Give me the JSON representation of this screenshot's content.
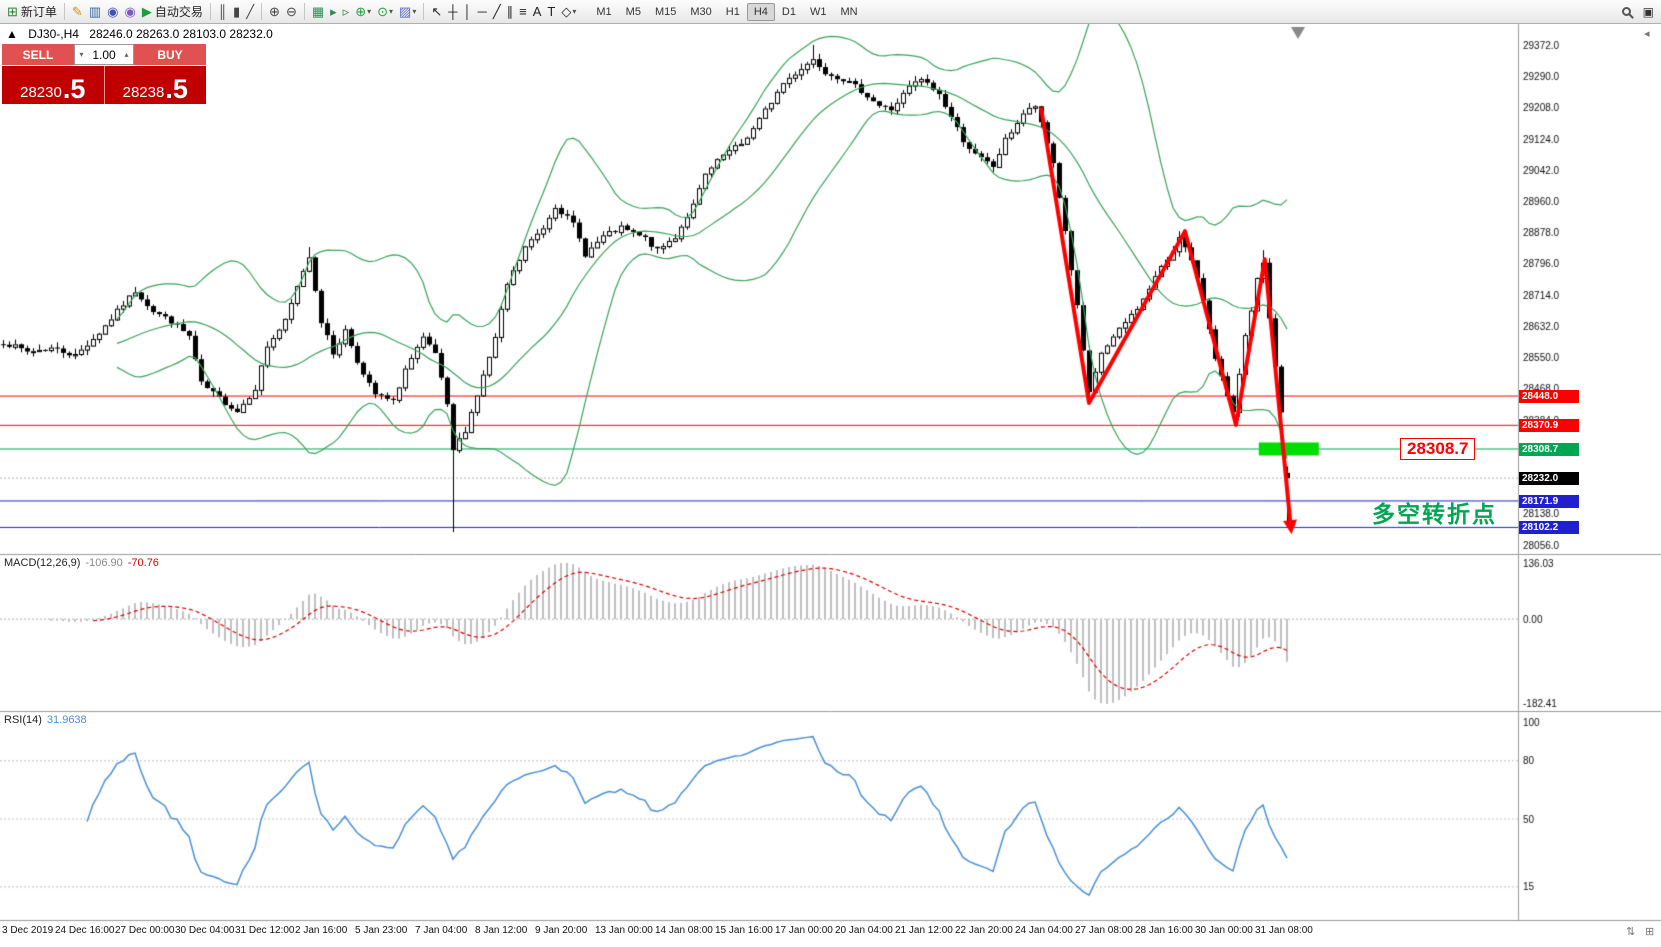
{
  "colors": {
    "button_red": "#e05252",
    "sell_red": "#c00000",
    "hline_red": "#ff0000",
    "hline_green": "#00a651",
    "hline_blue": "#2020cc",
    "band_green": "#3aa35c",
    "arrow_red": "#ff0000",
    "highlight_green": "#00dd00",
    "macd_histogram": "#c0c0c0",
    "macd_signal": "#e00000",
    "rsi_blue": "#4a90d9",
    "tag_black": "#000000"
  },
  "toolbar": {
    "groups": [
      {
        "items": [
          {
            "name": "new-order-button",
            "glyph": "⊞",
            "color": "#2e7d32",
            "label": "新订单"
          }
        ]
      },
      {
        "items": [
          {
            "name": "styler-icon",
            "glyph": "✎",
            "color": "#c8921a"
          },
          {
            "name": "new-chart-icon",
            "glyph": "▥",
            "color": "#33679e"
          },
          {
            "name": "profiles-icon",
            "glyph": "◉",
            "color": "#3f51b5"
          },
          {
            "name": "alerts-icon",
            "glyph": "◉",
            "color": "#7e57c2"
          },
          {
            "name": "auto-trading-button",
            "glyph": "▶",
            "color": "#1f9d3a",
            "label": "自动交易"
          }
        ]
      },
      {
        "items": [
          {
            "name": "bar-chart-type-icon",
            "glyph": "║",
            "color": "#444444"
          },
          {
            "name": "candlestick-type-icon",
            "glyph": "▮",
            "color": "#444444"
          },
          {
            "name": "line-chart-type-icon",
            "glyph": "╱",
            "color": "#444444"
          }
        ]
      },
      {
        "items": [
          {
            "name": "zoom-in-icon",
            "glyph": "⊕",
            "color": "#444444"
          },
          {
            "name": "zoom-out-icon",
            "glyph": "⊖",
            "color": "#444444"
          }
        ]
      },
      {
        "items": [
          {
            "name": "tile-windows-icon",
            "glyph": "▦",
            "color": "#2e8b57"
          },
          {
            "name": "auto-scroll-icon",
            "glyph": "▸",
            "color": "#2e8b57"
          },
          {
            "name": "chart-shift-icon",
            "glyph": "▹",
            "color": "#2e8b57"
          },
          {
            "name": "indicators-icon",
            "glyph": "⊕",
            "color": "#1f9d3a",
            "dropdown": true
          },
          {
            "name": "periods-icon",
            "glyph": "⊙",
            "color": "#1f9d3a",
            "dropdown": true
          },
          {
            "name": "templates-icon",
            "glyph": "▨",
            "color": "#5c6bc0",
            "dropdown": true
          }
        ]
      },
      {
        "items": [
          {
            "name": "cursor-icon",
            "glyph": "↖",
            "color": "#222222"
          },
          {
            "name": "crosshair-icon",
            "glyph": "┼",
            "color": "#222222"
          },
          {
            "name": "vertical-line-icon",
            "glyph": "│",
            "color": "#222222"
          },
          {
            "name": "horizontal-line-icon",
            "glyph": "─",
            "color": "#222222"
          },
          {
            "name": "trendline-icon",
            "glyph": "╱",
            "color": "#222222"
          },
          {
            "name": "channel-icon",
            "glyph": "∥",
            "color": "#222222"
          },
          {
            "name": "fibonacci-icon",
            "glyph": "≡",
            "color": "#222222"
          },
          {
            "name": "text-icon",
            "glyph": "A",
            "color": "#222222"
          },
          {
            "name": "label-icon",
            "glyph": "T",
            "color": "#222222"
          },
          {
            "name": "shapes-icon",
            "glyph": "◇",
            "color": "#222222",
            "dropdown": true
          }
        ]
      }
    ],
    "timeframes": [
      "M1",
      "M5",
      "M15",
      "M30",
      "H1",
      "H4",
      "D1",
      "W1",
      "MN"
    ],
    "active_timeframe": "H4"
  },
  "trade_widget": {
    "sell_label": "SELL",
    "buy_label": "BUY",
    "volume": "1.00",
    "sell_price": {
      "main": "28230",
      "big": ".5"
    },
    "buy_price": {
      "main": "28238",
      "big": ".5"
    }
  },
  "chart": {
    "expander": "▲",
    "symbol_label": "DJ30-,H4",
    "ohlc": "28246.0 28263.0 28103.0 28232.0",
    "price_axis": [
      29372.0,
      29290.0,
      29208.0,
      29124.0,
      29042.0,
      28960.0,
      28878.0,
      28796.0,
      28714.0,
      28632.0,
      28550.0,
      28468.0,
      28384.0,
      28138.0,
      28056.0
    ],
    "hlines": [
      {
        "price": 28448.0,
        "label": "28448.0",
        "color": "#ff0000",
        "tag_bg": "#ff0000"
      },
      {
        "price": 28370.9,
        "label": "28370.9",
        "color": "#ff0000",
        "tag_bg": "#ff0000"
      },
      {
        "price": 28308.7,
        "label": "28308.7",
        "color": "#00a651",
        "tag_bg": "#00a651"
      },
      {
        "price": 28171.9,
        "label": "28171.9",
        "color": "#2020cc",
        "tag_bg": "#2020cc"
      },
      {
        "price": 28102.2,
        "label": "28102.2",
        "color": "#2020cc",
        "tag_bg": "#2020cc"
      }
    ],
    "current_price_tag": {
      "price": 28232.0,
      "label": "28232.0",
      "tag_bg": "#000000"
    },
    "annotation_price_label": "28308.7",
    "annotation_text": "多空转折点",
    "highlight_bar": {
      "price": 28308.7,
      "from_idx": 209.3,
      "to_idx": 219.3
    }
  },
  "macd": {
    "name_part": "MACD(12,26,9)",
    "main_value": "-106.90",
    "signal_value": "-70.76",
    "axis": {
      "top": "136.03",
      "zero": "0.00",
      "bottom": "-182.41"
    },
    "params": {
      "fast": 12,
      "slow": 26,
      "signal": 9
    }
  },
  "rsi": {
    "name_part": "RSI(14)",
    "value": "31.9638",
    "period": 14,
    "axis": [
      {
        "label": "100",
        "value": 100,
        "line": false
      },
      {
        "label": "80",
        "value": 80,
        "line": true
      },
      {
        "label": "50",
        "value": 50,
        "line": true
      },
      {
        "label": "15",
        "value": 15,
        "line": true
      }
    ]
  },
  "time_axis": [
    "3 Dec 2019",
    "24 Dec 16:00",
    "27 Dec 00:00",
    "30 Dec 04:00",
    "31 Dec 12:00",
    "2 Jan 16:00",
    "5 Jan 23:00",
    "7 Jan 04:00",
    "8 Jan 12:00",
    "9 Jan 20:00",
    "13 Jan 00:00",
    "14 Jan 08:00",
    "15 Jan 16:00",
    "17 Jan 00:00",
    "20 Jan 04:00",
    "21 Jan 12:00",
    "22 Jan 20:00",
    "24 Jan 04:00",
    "27 Jan 08:00",
    "28 Jan 16:00",
    "30 Jan 00:00",
    "31 Jan 08:00"
  ],
  "chart_data": {
    "type": "candlestick",
    "symbol": "DJ30-",
    "timeframe": "H4",
    "visible_price_range": {
      "top": 29372.0,
      "bottom": 28056.0
    },
    "last_ohlc": {
      "open": 28246.0,
      "high": 28263.0,
      "low": 28103.0,
      "close": 28232.0
    },
    "candle_count": 215,
    "seed": 7,
    "price_anchors": [
      [
        0,
        28590
      ],
      [
        4,
        28565
      ],
      [
        8,
        28575
      ],
      [
        12,
        28555
      ],
      [
        16,
        28615
      ],
      [
        20,
        28690
      ],
      [
        22,
        28725
      ],
      [
        25,
        28672
      ],
      [
        28,
        28645
      ],
      [
        31,
        28605
      ],
      [
        33,
        28480
      ],
      [
        36,
        28442
      ],
      [
        39,
        28408
      ],
      [
        42,
        28470
      ],
      [
        44,
        28580
      ],
      [
        47,
        28645
      ],
      [
        50,
        28780
      ],
      [
        51,
        28815
      ],
      [
        53,
        28645
      ],
      [
        55,
        28560
      ],
      [
        57,
        28622
      ],
      [
        60,
        28502
      ],
      [
        62,
        28452
      ],
      [
        65,
        28432
      ],
      [
        67,
        28520
      ],
      [
        70,
        28598
      ],
      [
        72,
        28560
      ],
      [
        74,
        28420
      ],
      [
        75,
        28305
      ],
      [
        77,
        28360
      ],
      [
        79,
        28452
      ],
      [
        82,
        28600
      ],
      [
        84,
        28742
      ],
      [
        87,
        28840
      ],
      [
        90,
        28892
      ],
      [
        92,
        28950
      ],
      [
        95,
        28900
      ],
      [
        97,
        28822
      ],
      [
        100,
        28868
      ],
      [
        103,
        28890
      ],
      [
        107,
        28862
      ],
      [
        109,
        28830
      ],
      [
        112,
        28868
      ],
      [
        115,
        28950
      ],
      [
        117,
        29030
      ],
      [
        120,
        29082
      ],
      [
        123,
        29112
      ],
      [
        125,
        29152
      ],
      [
        127,
        29200
      ],
      [
        130,
        29272
      ],
      [
        133,
        29312
      ],
      [
        135,
        29335
      ],
      [
        137,
        29302
      ],
      [
        140,
        29282
      ],
      [
        143,
        29252
      ],
      [
        146,
        29212
      ],
      [
        148,
        29202
      ],
      [
        151,
        29262
      ],
      [
        153,
        29282
      ],
      [
        156,
        29242
      ],
      [
        158,
        29182
      ],
      [
        160,
        29122
      ],
      [
        162,
        29082
      ],
      [
        165,
        29052
      ],
      [
        167,
        29122
      ],
      [
        170,
        29192
      ],
      [
        172,
        29212
      ],
      [
        175,
        29062
      ],
      [
        177,
        28882
      ],
      [
        179,
        28682
      ],
      [
        181,
        28452
      ],
      [
        183,
        28562
      ],
      [
        185,
        28602
      ],
      [
        187,
        28642
      ],
      [
        190,
        28702
      ],
      [
        192,
        28762
      ],
      [
        195,
        28832
      ],
      [
        196,
        28872
      ],
      [
        198,
        28802
      ],
      [
        200,
        28702
      ],
      [
        202,
        28552
      ],
      [
        204,
        28442
      ],
      [
        205,
        28402
      ],
      [
        207,
        28602
      ],
      [
        209,
        28752
      ],
      [
        210,
        28802
      ],
      [
        211,
        28652
      ],
      [
        213,
        28402
      ],
      [
        214,
        28232
      ]
    ],
    "candle_overrides": [
      {
        "idx": 51,
        "high": 28840
      },
      {
        "idx": 75,
        "low": 28090
      },
      {
        "idx": 135,
        "high": 29372
      },
      {
        "idx": 196,
        "high": 28882
      },
      {
        "idx": 210,
        "high": 28832
      },
      {
        "idx": 214,
        "open": 28246,
        "high": 28263,
        "low": 28103,
        "close": 28232
      }
    ],
    "zigzag": [
      [
        173,
        29208
      ],
      [
        181,
        28430
      ],
      [
        197,
        28882
      ],
      [
        205.5,
        28372
      ],
      [
        210.3,
        28808
      ],
      [
        214.6,
        28108
      ]
    ],
    "bollinger": {
      "period": 20,
      "deviation": 2
    }
  }
}
